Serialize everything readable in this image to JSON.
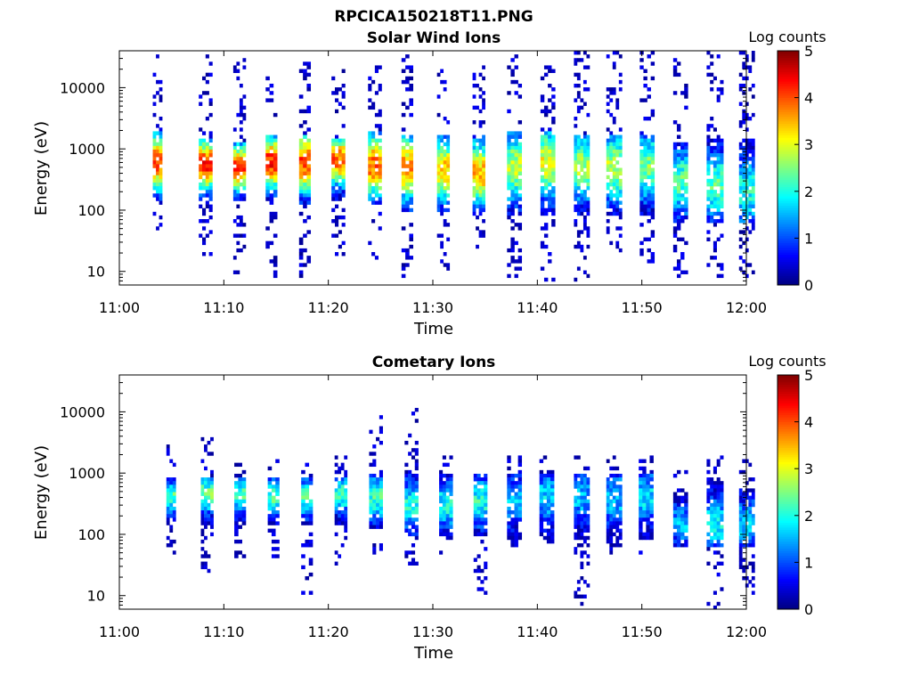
{
  "figure": {
    "filename": "RPCICA150218T11.PNG"
  },
  "chart_data": [
    {
      "type": "heatmap",
      "title": "Solar Wind Ions",
      "xlabel": "Time",
      "ylabel": "Energy (eV)",
      "x_ticks": [
        "11:00",
        "11:10",
        "11:20",
        "11:30",
        "11:40",
        "11:50",
        "12:00"
      ],
      "y_ticks": [
        "10",
        "100",
        "1000",
        "10000"
      ],
      "y_scale": "log",
      "ylim": [
        6,
        40000
      ],
      "xlim_min": [
        0,
        60
      ],
      "colorbar": {
        "label": "Log counts",
        "ticks": [
          "0",
          "1",
          "2",
          "3",
          "4",
          "5"
        ],
        "range": [
          0,
          5
        ],
        "colormap": "jet"
      },
      "scans": [
        {
          "t": 3.2,
          "w": 0.9,
          "core_lo": 150,
          "core_hi": 2000,
          "peak_e": 600,
          "peak_v": 4.0,
          "sparse_hi": 40000,
          "sparse_lo": 50
        },
        {
          "t": 7.6,
          "w": 1.3,
          "core_lo": 150,
          "core_hi": 1500,
          "peak_e": 550,
          "peak_v": 4.2,
          "sparse_hi": 40000,
          "sparse_lo": 15
        },
        {
          "t": 10.9,
          "w": 1.2,
          "core_lo": 150,
          "core_hi": 1300,
          "peak_e": 500,
          "peak_v": 4.0,
          "sparse_hi": 30000,
          "sparse_lo": 8
        },
        {
          "t": 14.0,
          "w": 1.1,
          "core_lo": 150,
          "core_hi": 1600,
          "peak_e": 600,
          "peak_v": 4.3,
          "sparse_hi": 30000,
          "sparse_lo": 8
        },
        {
          "t": 17.2,
          "w": 1.1,
          "core_lo": 120,
          "core_hi": 1800,
          "peak_e": 600,
          "peak_v": 4.0,
          "sparse_hi": 30000,
          "sparse_lo": 8
        },
        {
          "t": 20.3,
          "w": 1.3,
          "core_lo": 150,
          "core_hi": 1500,
          "peak_e": 650,
          "peak_v": 3.9,
          "sparse_hi": 20000,
          "sparse_lo": 15
        },
        {
          "t": 23.8,
          "w": 1.3,
          "core_lo": 120,
          "core_hi": 2000,
          "peak_e": 550,
          "peak_v": 3.9,
          "sparse_hi": 25000,
          "sparse_lo": 15
        },
        {
          "t": 27.0,
          "w": 1.1,
          "core_lo": 90,
          "core_hi": 1800,
          "peak_e": 500,
          "peak_v": 3.6,
          "sparse_hi": 40000,
          "sparse_lo": 8
        },
        {
          "t": 30.4,
          "w": 1.2,
          "core_lo": 100,
          "core_hi": 1800,
          "peak_e": 450,
          "peak_v": 3.4,
          "sparse_hi": 25000,
          "sparse_lo": 10
        },
        {
          "t": 33.8,
          "w": 1.2,
          "core_lo": 90,
          "core_hi": 1600,
          "peak_e": 400,
          "peak_v": 3.5,
          "sparse_hi": 25000,
          "sparse_lo": 20
        },
        {
          "t": 37.1,
          "w": 1.4,
          "core_lo": 80,
          "core_hi": 2000,
          "peak_e": 500,
          "peak_v": 2.8,
          "sparse_hi": 40000,
          "sparse_lo": 7
        },
        {
          "t": 40.3,
          "w": 1.4,
          "core_lo": 80,
          "core_hi": 2000,
          "peak_e": 600,
          "peak_v": 3.0,
          "sparse_hi": 40000,
          "sparse_lo": 7
        },
        {
          "t": 43.5,
          "w": 1.5,
          "core_lo": 80,
          "core_hi": 1800,
          "peak_e": 500,
          "peak_v": 2.7,
          "sparse_hi": 40000,
          "sparse_lo": 7
        },
        {
          "t": 46.6,
          "w": 1.5,
          "core_lo": 80,
          "core_hi": 1800,
          "peak_e": 500,
          "peak_v": 2.8,
          "sparse_hi": 40000,
          "sparse_lo": 15
        },
        {
          "t": 49.8,
          "w": 1.4,
          "core_lo": 80,
          "core_hi": 1800,
          "peak_e": 500,
          "peak_v": 2.5,
          "sparse_hi": 40000,
          "sparse_lo": 8
        },
        {
          "t": 53.0,
          "w": 1.4,
          "core_lo": 60,
          "core_hi": 1300,
          "peak_e": 300,
          "peak_v": 2.3,
          "sparse_hi": 30000,
          "sparse_lo": 7
        },
        {
          "t": 56.2,
          "w": 1.6,
          "core_lo": 60,
          "core_hi": 1500,
          "peak_e": 250,
          "peak_v": 2.3,
          "sparse_hi": 40000,
          "sparse_lo": 6
        },
        {
          "t": 59.3,
          "w": 1.5,
          "core_lo": 60,
          "core_hi": 1500,
          "peak_e": 200,
          "peak_v": 2.0,
          "sparse_hi": 40000,
          "sparse_lo": 7
        }
      ]
    },
    {
      "type": "heatmap",
      "title": "Cometary Ions",
      "xlabel": "Time",
      "ylabel": "Energy (eV)",
      "x_ticks": [
        "11:00",
        "11:10",
        "11:20",
        "11:30",
        "11:40",
        "11:50",
        "12:00"
      ],
      "y_ticks": [
        "10",
        "100",
        "1000",
        "10000"
      ],
      "y_scale": "log",
      "ylim": [
        6,
        40000
      ],
      "xlim_min": [
        0,
        60
      ],
      "colorbar": {
        "label": "Log counts",
        "ticks": [
          "0",
          "1",
          "2",
          "3",
          "4",
          "5"
        ],
        "range": [
          0,
          5
        ],
        "colormap": "jet"
      },
      "scans": [
        {
          "t": 4.5,
          "w": 0.9,
          "core_lo": 200,
          "core_hi": 800,
          "peak_e": 400,
          "peak_v": 2.3,
          "sparse_hi": 3000,
          "sparse_lo": 50
        },
        {
          "t": 7.8,
          "w": 1.2,
          "core_lo": 150,
          "core_hi": 900,
          "peak_e": 450,
          "peak_v": 2.4,
          "sparse_hi": 4000,
          "sparse_lo": 20
        },
        {
          "t": 11.0,
          "w": 1.1,
          "core_lo": 150,
          "core_hi": 900,
          "peak_e": 450,
          "peak_v": 2.2,
          "sparse_hi": 2000,
          "sparse_lo": 40
        },
        {
          "t": 14.2,
          "w": 1.1,
          "core_lo": 150,
          "core_hi": 900,
          "peak_e": 400,
          "peak_v": 2.2,
          "sparse_hi": 2000,
          "sparse_lo": 40
        },
        {
          "t": 17.4,
          "w": 1.1,
          "core_lo": 150,
          "core_hi": 900,
          "peak_e": 400,
          "peak_v": 2.2,
          "sparse_hi": 2000,
          "sparse_lo": 10
        },
        {
          "t": 20.6,
          "w": 1.2,
          "core_lo": 150,
          "core_hi": 900,
          "peak_e": 450,
          "peak_v": 2.1,
          "sparse_hi": 2000,
          "sparse_lo": 30
        },
        {
          "t": 23.9,
          "w": 1.3,
          "core_lo": 120,
          "core_hi": 1000,
          "peak_e": 400,
          "peak_v": 2.1,
          "sparse_hi": 10000,
          "sparse_lo": 40
        },
        {
          "t": 27.3,
          "w": 1.3,
          "core_lo": 100,
          "core_hi": 1000,
          "peak_e": 300,
          "peak_v": 2.0,
          "sparse_hi": 12000,
          "sparse_lo": 18
        },
        {
          "t": 30.6,
          "w": 1.3,
          "core_lo": 100,
          "core_hi": 1000,
          "peak_e": 300,
          "peak_v": 1.9,
          "sparse_hi": 2000,
          "sparse_lo": 40
        },
        {
          "t": 33.9,
          "w": 1.3,
          "core_lo": 90,
          "core_hi": 1000,
          "peak_e": 350,
          "peak_v": 2.0,
          "sparse_hi": 2000,
          "sparse_lo": 10
        },
        {
          "t": 37.1,
          "w": 1.4,
          "core_lo": 80,
          "core_hi": 1000,
          "peak_e": 350,
          "peak_v": 1.5,
          "sparse_hi": 2000,
          "sparse_lo": 60
        },
        {
          "t": 40.2,
          "w": 1.4,
          "core_lo": 80,
          "core_hi": 1000,
          "peak_e": 400,
          "peak_v": 1.6,
          "sparse_hi": 2000,
          "sparse_lo": 60
        },
        {
          "t": 43.5,
          "w": 1.5,
          "core_lo": 80,
          "core_hi": 1000,
          "peak_e": 400,
          "peak_v": 1.5,
          "sparse_hi": 2000,
          "sparse_lo": 7
        },
        {
          "t": 46.6,
          "w": 1.5,
          "core_lo": 80,
          "core_hi": 1000,
          "peak_e": 400,
          "peak_v": 1.6,
          "sparse_hi": 2000,
          "sparse_lo": 50
        },
        {
          "t": 49.7,
          "w": 1.4,
          "core_lo": 80,
          "core_hi": 1000,
          "peak_e": 400,
          "peak_v": 1.7,
          "sparse_hi": 2000,
          "sparse_lo": 40
        },
        {
          "t": 53.0,
          "w": 1.4,
          "core_lo": 60,
          "core_hi": 400,
          "peak_e": 150,
          "peak_v": 1.5,
          "sparse_hi": 1200,
          "sparse_lo": 60
        },
        {
          "t": 56.2,
          "w": 1.6,
          "core_lo": 60,
          "core_hi": 800,
          "peak_e": 150,
          "peak_v": 1.8,
          "sparse_hi": 2000,
          "sparse_lo": 6
        },
        {
          "t": 59.3,
          "w": 1.5,
          "core_lo": 60,
          "core_hi": 600,
          "peak_e": 150,
          "peak_v": 1.7,
          "sparse_hi": 1600,
          "sparse_lo": 10
        }
      ]
    }
  ]
}
